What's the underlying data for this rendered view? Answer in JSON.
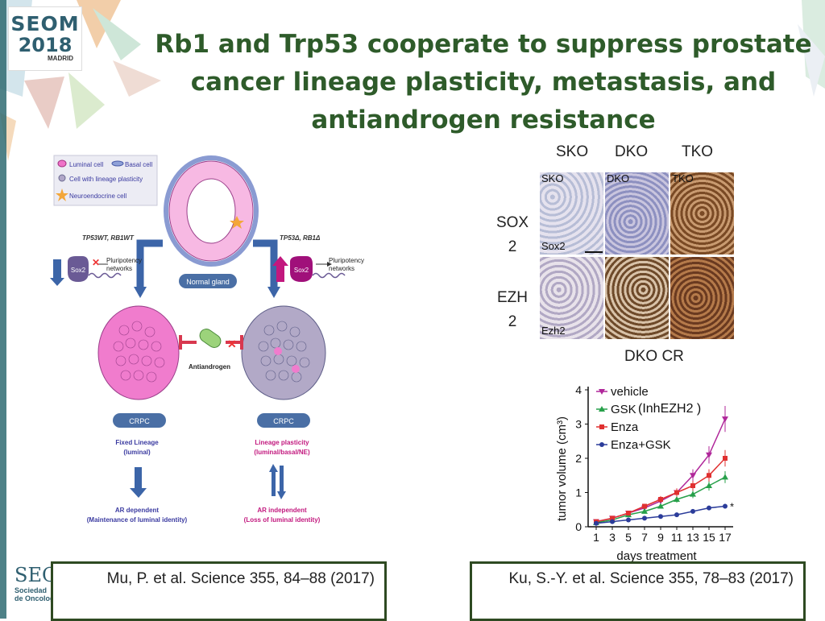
{
  "title": "Rb1 and Trp53 cooperate to suppress prostate cancer lineage plasticity, metastasis, and antiandrogen resistance",
  "logo": {
    "text": "SEOM",
    "year": "2018",
    "city": "MADRID"
  },
  "bottom_logo": {
    "abbr": "SEO",
    "line1": "Sociedad",
    "line2": "de Oncolog"
  },
  "left_figure": {
    "legend": [
      "Luminal cell",
      "Basal cell",
      "Cell with lineage plasticity",
      "Neuroendocrine cell"
    ],
    "normal_gland": "Normal gland",
    "left_genotype": "TP53WT, RB1WT",
    "right_genotype": "TP53Δ, RB1Δ",
    "sox2": "Sox2",
    "pluripotency": "Pluripotency networks",
    "antiandrogen": "Antiandrogen",
    "crpc": "CRPC",
    "fixed_lineage": "Fixed Lineage",
    "fixed_lineage_sub": "(luminal)",
    "plasticity": "Lineage plasticity",
    "plasticity_sub": "(luminal/basal/NE)",
    "ar_dep": "AR dependent",
    "ar_dep_sub": "(Maintenance of luminal identity)",
    "ar_indep": "AR independent",
    "ar_indep_sub": "(Loss of luminal identity)"
  },
  "ihc": {
    "col_headers": [
      "SKO",
      "DKO",
      "TKO"
    ],
    "row_headers": [
      "SOX 2",
      "EZH 2"
    ],
    "panel_labels": [
      "SKO",
      "DKO",
      "TKO"
    ],
    "row_labels": [
      "Sox2",
      "Ezh2"
    ],
    "caption": "DKO CR"
  },
  "chart_data": {
    "type": "line",
    "xlabel": "days treatment",
    "ylabel": "tumor volume (cm³)",
    "x": [
      1,
      3,
      5,
      7,
      9,
      11,
      13,
      15,
      17
    ],
    "ylim": [
      0,
      4
    ],
    "yticks": [
      0,
      1,
      2,
      3,
      4
    ],
    "series": [
      {
        "name": "vehicle",
        "color": "#b0279a",
        "marker": "triangle-down",
        "values": [
          0.15,
          0.25,
          0.4,
          0.55,
          0.75,
          1.0,
          1.5,
          2.1,
          3.15
        ]
      },
      {
        "name": "GSK",
        "color": "#27a04a",
        "marker": "triangle-up",
        "values": [
          0.12,
          0.2,
          0.35,
          0.45,
          0.6,
          0.8,
          0.95,
          1.2,
          1.45
        ]
      },
      {
        "name": "Enza",
        "color": "#e03030",
        "marker": "square",
        "values": [
          0.15,
          0.25,
          0.4,
          0.6,
          0.8,
          1.0,
          1.2,
          1.5,
          2.0
        ]
      },
      {
        "name": "Enza+GSK",
        "color": "#2b3c9a",
        "marker": "circle",
        "values": [
          0.1,
          0.15,
          0.2,
          0.25,
          0.3,
          0.35,
          0.45,
          0.55,
          0.6
        ]
      }
    ],
    "annotation": "(InhEZH2 )",
    "significance": "*"
  },
  "citations": [
    "Mu, P. et al. Science 355, 84–88 (2017)",
    "Ku, S.-Y. et al. Science 355, 78–83 (2017)"
  ]
}
